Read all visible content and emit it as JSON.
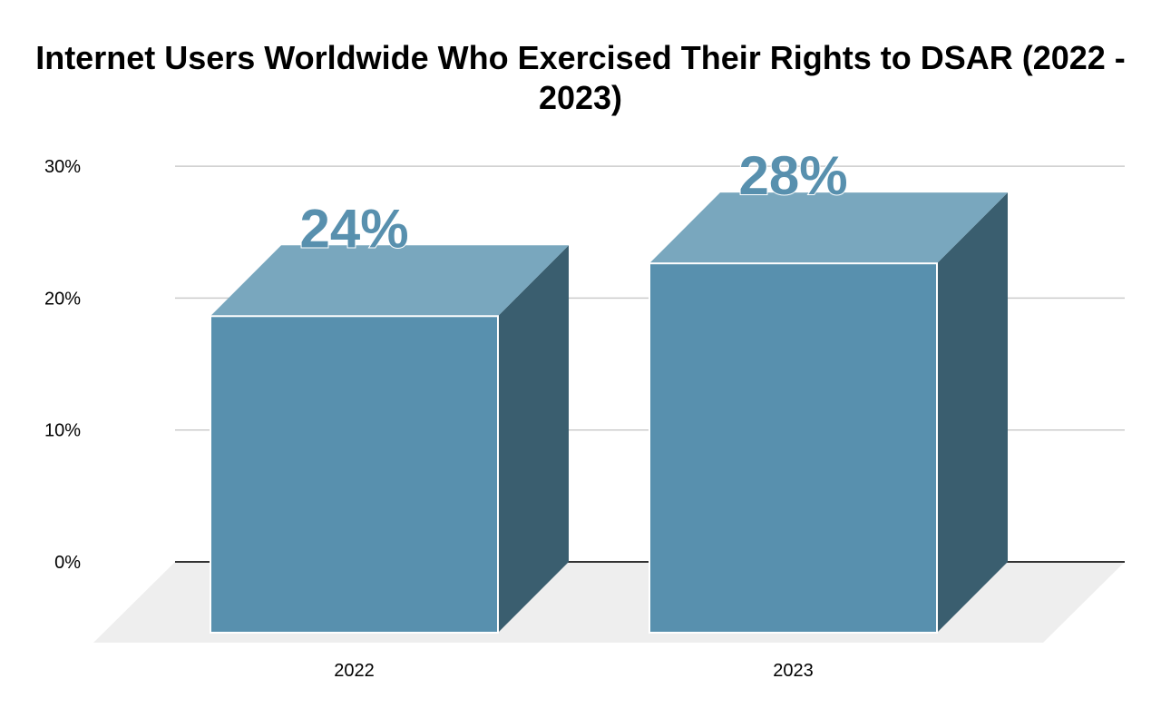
{
  "chart_data": {
    "type": "bar",
    "title": "Internet Users Worldwide Who Exercised Their Rights to DSAR (2022 - 2023)",
    "categories": [
      "2022",
      "2023"
    ],
    "values": [
      24,
      28
    ],
    "data_labels": [
      "24%",
      "28%"
    ],
    "xlabel": "",
    "ylabel": "",
    "ylim": [
      0,
      30
    ],
    "yticks": [
      "0%",
      "10%",
      "20%",
      "30%"
    ],
    "grid": true,
    "style": "3d",
    "colors": {
      "front": "#5890ae",
      "top": "#79a7be",
      "side": "#3a5e6f",
      "label": "#5890ae",
      "floor": "#eeeeee",
      "grid": "#cccccc"
    }
  }
}
